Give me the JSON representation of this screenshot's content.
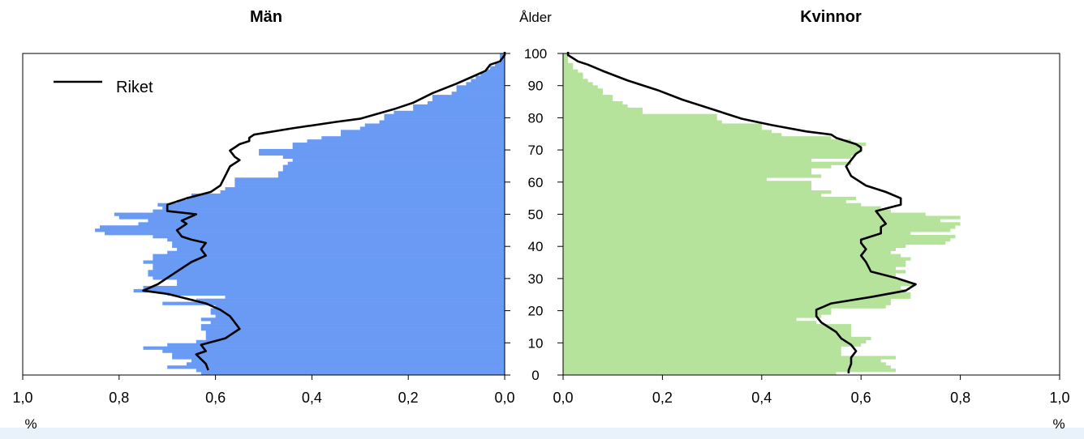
{
  "chart_data": {
    "type": "bar",
    "orientation": "horizontal",
    "layout": "population-pyramid",
    "left_panel": {
      "title": "Män",
      "xlabel": "%",
      "xlim": [
        1.0,
        0.0
      ],
      "x_ticks": [
        "1,0",
        "0,8",
        "0,6",
        "0,4",
        "0,2",
        "0,0"
      ],
      "bar_color": "#6a9bf4",
      "age": [
        0,
        1,
        2,
        3,
        4,
        5,
        6,
        7,
        8,
        9,
        10,
        11,
        12,
        13,
        14,
        15,
        16,
        17,
        18,
        19,
        20,
        21,
        22,
        23,
        24,
        25,
        26,
        27,
        28,
        29,
        30,
        31,
        32,
        33,
        34,
        35,
        36,
        37,
        38,
        39,
        40,
        41,
        42,
        43,
        44,
        45,
        46,
        47,
        48,
        49,
        50,
        51,
        52,
        53,
        54,
        55,
        56,
        57,
        58,
        59,
        60,
        61,
        62,
        63,
        64,
        65,
        66,
        67,
        68,
        69,
        70,
        71,
        72,
        73,
        74,
        75,
        76,
        77,
        78,
        79,
        80,
        81,
        82,
        83,
        84,
        85,
        86,
        87,
        88,
        89,
        90,
        91,
        92,
        93,
        94,
        95,
        96,
        97,
        98,
        99,
        100
      ],
      "values": [
        0.63,
        0.64,
        0.7,
        0.66,
        0.65,
        0.69,
        0.69,
        0.71,
        0.75,
        0.7,
        0.64,
        0.62,
        0.62,
        0.62,
        0.63,
        0.63,
        0.61,
        0.63,
        0.6,
        0.61,
        0.61,
        0.6,
        0.71,
        0.64,
        0.58,
        0.7,
        0.77,
        0.75,
        0.68,
        0.68,
        0.73,
        0.74,
        0.74,
        0.73,
        0.73,
        0.75,
        0.73,
        0.73,
        0.7,
        0.68,
        0.69,
        0.69,
        0.7,
        0.73,
        0.83,
        0.85,
        0.84,
        0.76,
        0.74,
        0.8,
        0.81,
        0.73,
        0.71,
        0.72,
        0.68,
        0.66,
        0.65,
        0.59,
        0.58,
        0.56,
        0.56,
        0.56,
        0.47,
        0.47,
        0.46,
        0.46,
        0.45,
        0.44,
        0.46,
        0.51,
        0.51,
        0.44,
        0.44,
        0.41,
        0.38,
        0.34,
        0.34,
        0.3,
        0.29,
        0.26,
        0.25,
        0.25,
        0.23,
        0.19,
        0.19,
        0.16,
        0.15,
        0.15,
        0.11,
        0.1,
        0.1,
        0.08,
        0.07,
        0.06,
        0.05,
        0.04,
        0.03,
        0.02,
        0.01,
        0.01,
        0.01
      ],
      "riket": {
        "name": "Riket",
        "age": [
          1,
          3,
          6,
          7,
          9,
          11,
          14,
          16,
          18,
          20,
          22,
          25,
          26,
          28,
          30,
          33,
          35,
          37,
          39,
          41,
          42,
          43,
          45,
          47,
          48,
          50,
          51,
          53,
          55,
          57,
          59,
          62,
          65,
          67,
          68,
          70,
          71,
          72,
          73,
          74,
          75,
          77,
          79,
          80,
          83,
          85,
          88,
          91,
          93,
          95,
          97,
          98,
          100,
          101
        ],
        "values": [
          0.615,
          0.62,
          0.64,
          0.62,
          0.63,
          0.58,
          0.55,
          0.56,
          0.57,
          0.59,
          0.62,
          0.7,
          0.75,
          0.72,
          0.7,
          0.67,
          0.65,
          0.62,
          0.63,
          0.62,
          0.65,
          0.67,
          0.68,
          0.66,
          0.67,
          0.64,
          0.7,
          0.7,
          0.66,
          0.61,
          0.59,
          0.58,
          0.57,
          0.55,
          0.56,
          0.57,
          0.56,
          0.55,
          0.53,
          0.53,
          0.52,
          0.44,
          0.35,
          0.3,
          0.23,
          0.19,
          0.15,
          0.1,
          0.07,
          0.04,
          0.03,
          0.01,
          0.0,
          0.0
        ]
      }
    },
    "right_panel": {
      "title": "Kvinnor",
      "xlabel": "%",
      "xlim": [
        0.0,
        1.0
      ],
      "x_ticks": [
        "0,0",
        "0,2",
        "0,4",
        "0,6",
        "0,8",
        "1,0"
      ],
      "bar_color": "#b5e39b",
      "age": [
        0,
        1,
        2,
        3,
        4,
        5,
        6,
        7,
        8,
        9,
        10,
        11,
        12,
        13,
        14,
        15,
        16,
        17,
        18,
        19,
        20,
        21,
        22,
        23,
        24,
        25,
        26,
        27,
        28,
        29,
        30,
        31,
        32,
        33,
        34,
        35,
        36,
        37,
        38,
        39,
        40,
        41,
        42,
        43,
        44,
        45,
        46,
        47,
        48,
        49,
        50,
        51,
        52,
        53,
        54,
        55,
        56,
        57,
        58,
        59,
        60,
        61,
        62,
        63,
        64,
        65,
        66,
        67,
        68,
        69,
        70,
        71,
        72,
        73,
        74,
        75,
        76,
        77,
        78,
        79,
        80,
        81,
        82,
        83,
        84,
        85,
        86,
        87,
        88,
        89,
        90,
        91,
        92,
        93,
        94,
        95,
        96,
        97,
        98,
        99,
        100
      ],
      "values": [
        0.55,
        0.67,
        0.66,
        0.65,
        0.64,
        0.67,
        0.56,
        0.56,
        0.56,
        0.6,
        0.61,
        0.62,
        0.58,
        0.58,
        0.58,
        0.58,
        0.51,
        0.47,
        0.52,
        0.54,
        0.54,
        0.65,
        0.66,
        0.66,
        0.7,
        0.7,
        0.69,
        0.68,
        0.71,
        0.69,
        0.67,
        0.67,
        0.69,
        0.67,
        0.69,
        0.69,
        0.7,
        0.68,
        0.66,
        0.67,
        0.69,
        0.77,
        0.78,
        0.79,
        0.7,
        0.78,
        0.79,
        0.8,
        0.76,
        0.8,
        0.73,
        0.66,
        0.64,
        0.6,
        0.57,
        0.59,
        0.52,
        0.54,
        0.5,
        0.5,
        0.5,
        0.41,
        0.52,
        0.5,
        0.5,
        0.54,
        0.58,
        0.5,
        0.58,
        0.59,
        0.6,
        0.6,
        0.61,
        0.58,
        0.54,
        0.44,
        0.42,
        0.4,
        0.4,
        0.32,
        0.31,
        0.31,
        0.16,
        0.16,
        0.13,
        0.12,
        0.1,
        0.1,
        0.08,
        0.08,
        0.07,
        0.06,
        0.05,
        0.04,
        0.04,
        0.03,
        0.02,
        0.02,
        0.01,
        0.01,
        0.01
      ],
      "riket": {
        "name": "Riket",
        "age": [
          0,
          1,
          3,
          5,
          7,
          9,
          11,
          13,
          16,
          18,
          20,
          22,
          24,
          26,
          27,
          28,
          30,
          32,
          35,
          37,
          39,
          41,
          42,
          44,
          46,
          47,
          49,
          51,
          53,
          55,
          57,
          59,
          62,
          65,
          67,
          69,
          70,
          71,
          72,
          73,
          74,
          75,
          76,
          78,
          80,
          83,
          86,
          89,
          92,
          95,
          97,
          98,
          100,
          101
        ],
        "values": [
          0.575,
          0.575,
          0.58,
          0.58,
          0.59,
          0.58,
          0.56,
          0.55,
          0.52,
          0.51,
          0.51,
          0.54,
          0.62,
          0.69,
          0.7,
          0.71,
          0.67,
          0.62,
          0.61,
          0.6,
          0.61,
          0.6,
          0.6,
          0.64,
          0.64,
          0.65,
          0.64,
          0.63,
          0.68,
          0.68,
          0.65,
          0.61,
          0.58,
          0.57,
          0.58,
          0.59,
          0.6,
          0.6,
          0.59,
          0.57,
          0.55,
          0.54,
          0.49,
          0.42,
          0.36,
          0.3,
          0.24,
          0.19,
          0.13,
          0.08,
          0.05,
          0.03,
          0.01,
          0.01
        ]
      }
    },
    "y_axis": {
      "label": "Ålder",
      "ylim": [
        0,
        100
      ],
      "ticks": [
        "0",
        "10",
        "20",
        "30",
        "40",
        "50",
        "60",
        "70",
        "80",
        "90",
        "100"
      ]
    },
    "legend": {
      "label": "Riket",
      "placement": "top-left"
    },
    "grid": false,
    "riket_color": "#000000"
  }
}
